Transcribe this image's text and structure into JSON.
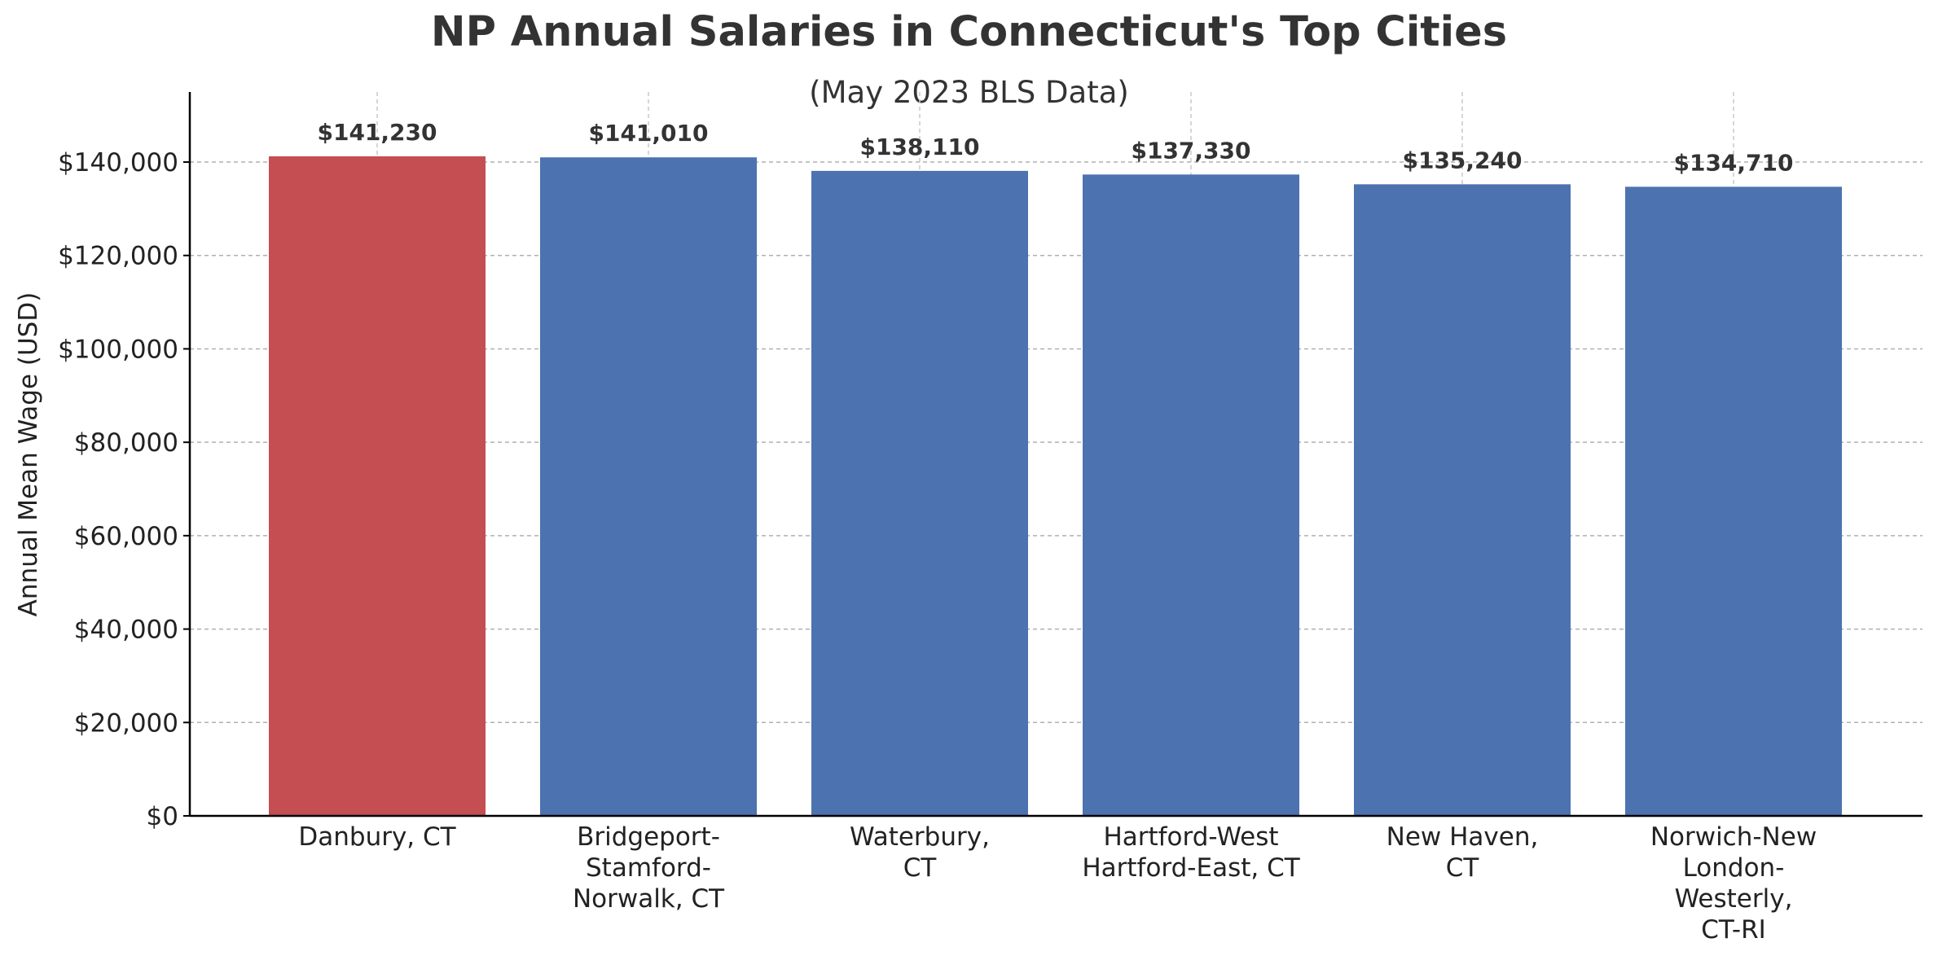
{
  "chart_data": {
    "type": "bar",
    "title": "NP Annual Salaries in Connecticut's Top Cities",
    "subtitle": "(May 2023 BLS Data)",
    "xlabel": "",
    "ylabel": "Annual Mean Wage (USD)",
    "ylim": [
      0,
      155000
    ],
    "yticks": [
      0,
      20000,
      40000,
      60000,
      80000,
      100000,
      120000,
      140000
    ],
    "ytick_labels": [
      "$0",
      "$20,000",
      "$40,000",
      "$60,000",
      "$80,000",
      "$100,000",
      "$120,000",
      "$140,000"
    ],
    "categories": [
      [
        "Danbury, CT"
      ],
      [
        "Bridgeport-",
        "Stamford-",
        "Norwalk, CT"
      ],
      [
        "Waterbury,",
        "CT"
      ],
      [
        "Hartford-West",
        "Hartford-East, CT"
      ],
      [
        "New Haven,",
        "CT"
      ],
      [
        "Norwich-New",
        "London-",
        "Westerly,",
        "CT-RI"
      ]
    ],
    "values": [
      141230,
      141010,
      138110,
      137330,
      135240,
      134710
    ],
    "value_labels": [
      "$141,230",
      "$141,010",
      "$138,110",
      "$137,330",
      "$135,240",
      "$134,710"
    ],
    "colors": [
      "#c44e52",
      "#4c72b0",
      "#4c72b0",
      "#4c72b0",
      "#4c72b0",
      "#4c72b0"
    ],
    "grid": true,
    "legend": "none"
  }
}
